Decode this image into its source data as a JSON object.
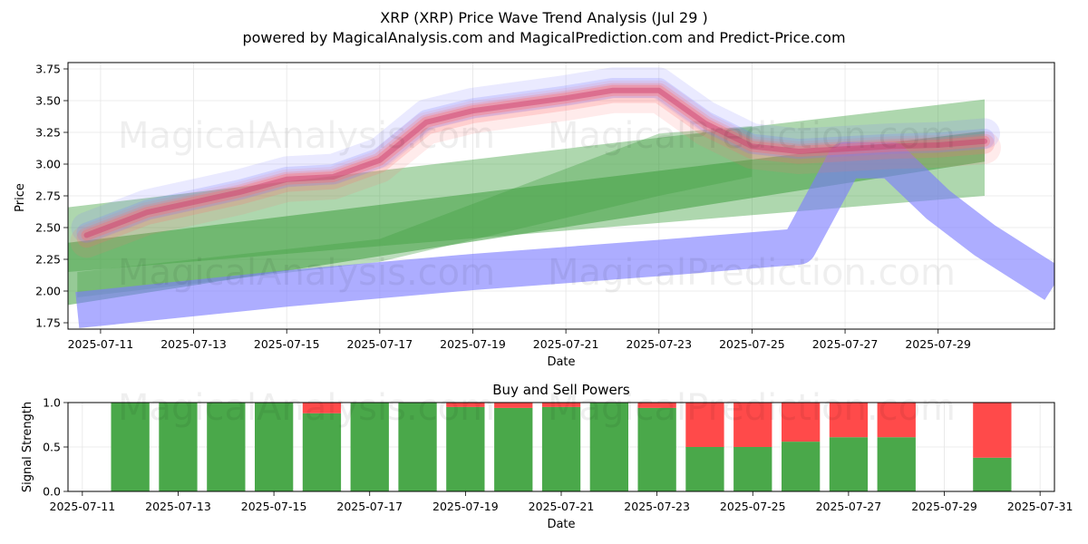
{
  "watermark": {
    "left": "MagicalAnalysis.com",
    "right": "MagicalPrediction.com"
  },
  "colors": {
    "buy": "#4aa84a",
    "sell": "#ff4a4a",
    "wave_blue": "#7b7bff",
    "wave_red": "#ff6e6e",
    "band_green": "#3f9f3f"
  },
  "chart_data": [
    {
      "type": "line",
      "title": "XRP (XRP) Price Wave Trend Analysis (Jul 29 )",
      "subtitle": "powered by MagicalAnalysis.com and MagicalPrediction.com and Predict-Price.com",
      "xlabel": "Date",
      "ylabel": "Price",
      "xlim": [
        -0.7,
        20.5
      ],
      "ylim": [
        1.7,
        3.8
      ],
      "x_ticks": [
        {
          "x": 0,
          "label": "2025-07-11"
        },
        {
          "x": 2,
          "label": "2025-07-13"
        },
        {
          "x": 4,
          "label": "2025-07-15"
        },
        {
          "x": 6,
          "label": "2025-07-17"
        },
        {
          "x": 8,
          "label": "2025-07-19"
        },
        {
          "x": 10,
          "label": "2025-07-21"
        },
        {
          "x": 12,
          "label": "2025-07-23"
        },
        {
          "x": 14,
          "label": "2025-07-25"
        },
        {
          "x": 16,
          "label": "2025-07-27"
        },
        {
          "x": 18,
          "label": "2025-07-29"
        }
      ],
      "y_ticks": [
        "1.75",
        "2.00",
        "2.25",
        "2.50",
        "2.75",
        "3.00",
        "3.25",
        "3.50",
        "3.75"
      ],
      "price_wave": {
        "x": [
          -0.3,
          0.5,
          1,
          2,
          3,
          4,
          5,
          6,
          7,
          8,
          9,
          10,
          11,
          12,
          13,
          14,
          15,
          16,
          17,
          18,
          19
        ],
        "y": [
          2.44,
          2.55,
          2.62,
          2.7,
          2.78,
          2.88,
          2.9,
          3.03,
          3.33,
          3.42,
          3.47,
          3.52,
          3.58,
          3.58,
          3.32,
          3.14,
          3.1,
          3.12,
          3.14,
          3.15,
          3.18
        ]
      },
      "bands": [
        {
          "x": [
            -0.7,
            19.0
          ],
          "upper": [
            2.66,
            3.51
          ],
          "lower": [
            2.15,
            2.75
          ]
        },
        {
          "x": [
            -0.7,
            19.0
          ],
          "upper": [
            2.38,
            3.26
          ],
          "lower": [
            1.89,
            3.02
          ]
        },
        {
          "x": [
            -0.5,
            6,
            12,
            14
          ],
          "upper": [
            2.15,
            2.41,
            3.24,
            3.3
          ],
          "lower": [
            1.95,
            2.23,
            2.75,
            2.9
          ]
        }
      ],
      "blue_band": {
        "x": [
          -0.5,
          4,
          8,
          12,
          15,
          16,
          17,
          18,
          19,
          20.5
        ],
        "y": [
          1.85,
          2.02,
          2.15,
          2.26,
          2.35,
          3.03,
          3.03,
          2.68,
          2.4,
          2.05
        ]
      }
    },
    {
      "type": "bar",
      "title": "Buy and Sell Powers",
      "xlabel": "Date",
      "ylabel": "Signal Strength",
      "xlim": [
        -0.3,
        20.3
      ],
      "ylim": [
        0,
        1.0
      ],
      "x_ticks": [
        {
          "x": 0,
          "label": "2025-07-11"
        },
        {
          "x": 2,
          "label": "2025-07-13"
        },
        {
          "x": 4,
          "label": "2025-07-15"
        },
        {
          "x": 6,
          "label": "2025-07-17"
        },
        {
          "x": 8,
          "label": "2025-07-19"
        },
        {
          "x": 10,
          "label": "2025-07-21"
        },
        {
          "x": 12,
          "label": "2025-07-23"
        },
        {
          "x": 14,
          "label": "2025-07-25"
        },
        {
          "x": 16,
          "label": "2025-07-27"
        },
        {
          "x": 18,
          "label": "2025-07-29"
        },
        {
          "x": 20,
          "label": "2025-07-31"
        }
      ],
      "y_ticks": [
        "0.0",
        "0.5",
        "1.0"
      ],
      "x": [
        1,
        2,
        3,
        4,
        5,
        6,
        7,
        8,
        9,
        10,
        11,
        12,
        13,
        14,
        15,
        16,
        17,
        19
      ],
      "series": [
        {
          "name": "Buy",
          "values": [
            1.0,
            1.0,
            1.0,
            1.0,
            0.88,
            1.0,
            1.0,
            0.95,
            0.94,
            0.95,
            1.0,
            0.94,
            0.5,
            0.5,
            0.56,
            0.61,
            0.61,
            0.38
          ]
        },
        {
          "name": "Sell",
          "values": [
            0.0,
            0.0,
            0.0,
            0.0,
            0.12,
            0.0,
            0.0,
            0.05,
            0.06,
            0.05,
            0.0,
            0.06,
            0.5,
            0.5,
            0.44,
            0.39,
            0.39,
            0.62
          ]
        }
      ]
    }
  ]
}
